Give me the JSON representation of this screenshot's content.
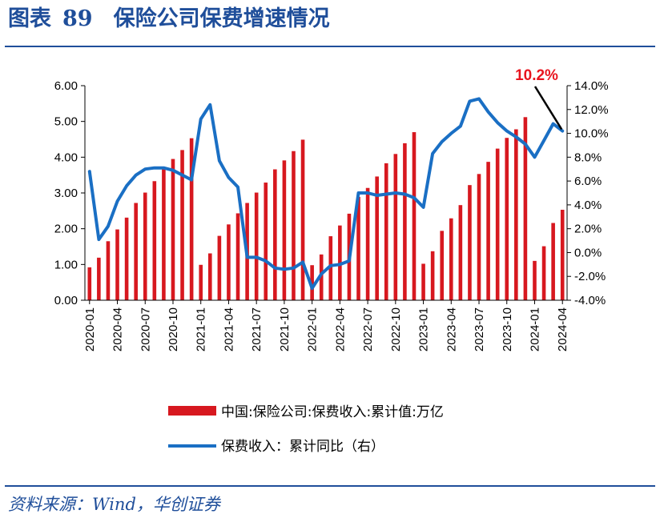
{
  "header": {
    "figure_label": "图表",
    "figure_number": "89",
    "title": "保险公司保费增速情况"
  },
  "footer": {
    "source": "资料来源：Wind，华创证券"
  },
  "colors": {
    "bar": "#d7181f",
    "line": "#1a6fc4",
    "title": "#1f4e9a",
    "annotation": "#e8141e"
  },
  "chart_data": {
    "type": "bar+line",
    "annotation": "10.2%",
    "legend_position": "bottom",
    "grid": false,
    "left_axis": {
      "ylim": [
        0,
        6
      ],
      "ticks": [
        "0.00",
        "1.00",
        "2.00",
        "3.00",
        "4.00",
        "5.00",
        "6.00"
      ]
    },
    "right_axis": {
      "ylim": [
        -4,
        14
      ],
      "ticks": [
        "-4.0%",
        "-2.0%",
        "0.0%",
        "2.0%",
        "4.0%",
        "6.0%",
        "8.0%",
        "10.0%",
        "12.0%",
        "14.0%"
      ]
    },
    "x_tick_labels": [
      "2020-01",
      "2020-04",
      "2020-07",
      "2020-10",
      "2021-01",
      "2021-04",
      "2021-07",
      "2021-10",
      "2022-01",
      "2022-04",
      "2022-07",
      "2022-10",
      "2023-01",
      "2023-04",
      "2023-07",
      "2023-10",
      "2024-01",
      "2024-04"
    ],
    "months": [
      "2020-01",
      "2020-02",
      "2020-03",
      "2020-04",
      "2020-05",
      "2020-06",
      "2020-07",
      "2020-08",
      "2020-09",
      "2020-10",
      "2020-11",
      "2020-12",
      "2021-01",
      "2021-02",
      "2021-03",
      "2021-04",
      "2021-05",
      "2021-06",
      "2021-07",
      "2021-08",
      "2021-09",
      "2021-10",
      "2021-11",
      "2021-12",
      "2022-01",
      "2022-02",
      "2022-03",
      "2022-04",
      "2022-05",
      "2022-06",
      "2022-07",
      "2022-08",
      "2022-09",
      "2022-10",
      "2022-11",
      "2022-12",
      "2023-01",
      "2023-02",
      "2023-03",
      "2023-04",
      "2023-05",
      "2023-06",
      "2023-07",
      "2023-08",
      "2023-09",
      "2023-10",
      "2023-11",
      "2023-12",
      "2024-01",
      "2024-02",
      "2024-03",
      "2024-04"
    ],
    "series": [
      {
        "name": "中国:保险公司:保费收入:累计值:万亿",
        "kind": "bar",
        "axis": "left",
        "values": [
          0.92,
          1.19,
          1.65,
          1.98,
          2.31,
          2.72,
          3.01,
          3.33,
          3.71,
          3.95,
          4.2,
          4.53,
          0.99,
          1.31,
          1.8,
          2.12,
          2.43,
          2.72,
          3.01,
          3.29,
          3.66,
          3.91,
          4.17,
          4.49,
          0.98,
          1.28,
          1.79,
          2.09,
          2.42,
          2.89,
          3.14,
          3.46,
          3.83,
          4.09,
          4.39,
          4.7,
          1.02,
          1.37,
          1.94,
          2.29,
          2.66,
          3.22,
          3.53,
          3.87,
          4.24,
          4.54,
          4.78,
          5.12,
          1.1,
          1.51,
          2.16,
          2.53
        ]
      },
      {
        "name": "保费收入：累计同比（右）",
        "kind": "line",
        "axis": "right",
        "values": [
          6.8,
          1.1,
          2.2,
          4.3,
          5.6,
          6.5,
          7.0,
          7.1,
          7.1,
          6.9,
          6.5,
          6.1,
          11.2,
          12.4,
          7.7,
          6.3,
          5.5,
          -0.4,
          -0.4,
          -0.7,
          -1.3,
          -1.4,
          -1.3,
          -0.8,
          -3.0,
          -1.8,
          -1.1,
          -1.0,
          -0.7,
          5.0,
          5.0,
          4.8,
          4.9,
          5.0,
          4.9,
          4.6,
          3.8,
          8.3,
          9.3,
          10.0,
          10.6,
          12.7,
          12.9,
          11.8,
          10.9,
          10.2,
          9.7,
          9.1,
          8.0,
          9.4,
          10.8,
          10.2
        ]
      }
    ]
  }
}
